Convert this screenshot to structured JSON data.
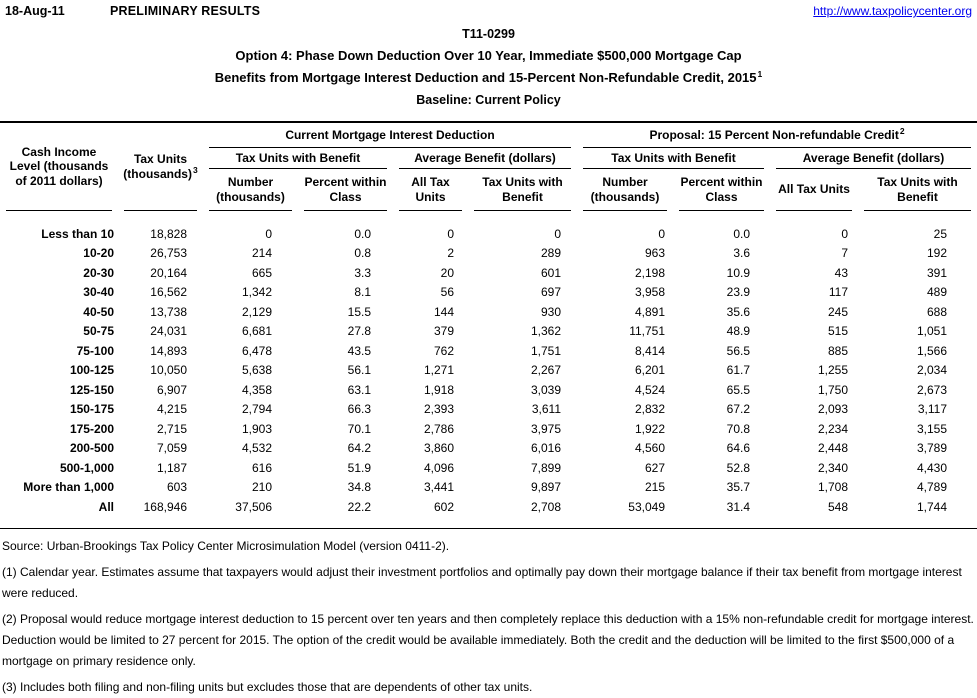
{
  "page": {
    "date": "18-Aug-11",
    "status": "PRELIMINARY RESULTS",
    "link": "http://www.taxpolicycenter.org",
    "table_number": "T11-0299",
    "title_option": "Option 4: Phase Down Deduction Over 10 Year, Immediate $500,000 Mortgage Cap",
    "title_benefits": "Benefits from Mortgage Interest Deduction and 15-Percent Non-Refundable Credit, 2015",
    "title_benefits_sup": "1",
    "title_baseline": "Baseline: Current Policy"
  },
  "table": {
    "header": {
      "income_lines": [
        "Cash Income",
        "Level (thousands",
        "of 2011 dollars)"
      ],
      "tax_units_line1": "Tax Units",
      "tax_units_line2": "(thousands)",
      "tax_units_sup": "3",
      "group1": "Current Mortgage Interest Deduction",
      "group2": "Proposal: 15 Percent Non-refundable Credit",
      "group2_sup": "2",
      "sub_units": "Tax Units with Benefit",
      "sub_avg": "Average Benefit (dollars)",
      "number_lines": [
        "Number",
        "(thousands)"
      ],
      "percent_lines": [
        "Percent within",
        "Class"
      ],
      "all_units": "All Tax Units",
      "benefit_lines": [
        "Tax Units with",
        "Benefit"
      ]
    },
    "rows": [
      {
        "label": "Less than 10",
        "values": [
          "18,828",
          "0",
          "0.0",
          "0",
          "0",
          "0",
          "0.0",
          "0",
          "25"
        ]
      },
      {
        "label": "10-20",
        "values": [
          "26,753",
          "214",
          "0.8",
          "2",
          "289",
          "963",
          "3.6",
          "7",
          "192"
        ]
      },
      {
        "label": "20-30",
        "values": [
          "20,164",
          "665",
          "3.3",
          "20",
          "601",
          "2,198",
          "10.9",
          "43",
          "391"
        ]
      },
      {
        "label": "30-40",
        "values": [
          "16,562",
          "1,342",
          "8.1",
          "56",
          "697",
          "3,958",
          "23.9",
          "117",
          "489"
        ]
      },
      {
        "label": "40-50",
        "values": [
          "13,738",
          "2,129",
          "15.5",
          "144",
          "930",
          "4,891",
          "35.6",
          "245",
          "688"
        ]
      },
      {
        "label": "50-75",
        "values": [
          "24,031",
          "6,681",
          "27.8",
          "379",
          "1,362",
          "11,751",
          "48.9",
          "515",
          "1,051"
        ]
      },
      {
        "label": "75-100",
        "values": [
          "14,893",
          "6,478",
          "43.5",
          "762",
          "1,751",
          "8,414",
          "56.5",
          "885",
          "1,566"
        ]
      },
      {
        "label": "100-125",
        "values": [
          "10,050",
          "5,638",
          "56.1",
          "1,271",
          "2,267",
          "6,201",
          "61.7",
          "1,255",
          "2,034"
        ]
      },
      {
        "label": "125-150",
        "values": [
          "6,907",
          "4,358",
          "63.1",
          "1,918",
          "3,039",
          "4,524",
          "65.5",
          "1,750",
          "2,673"
        ]
      },
      {
        "label": "150-175",
        "values": [
          "4,215",
          "2,794",
          "66.3",
          "2,393",
          "3,611",
          "2,832",
          "67.2",
          "2,093",
          "3,117"
        ]
      },
      {
        "label": "175-200",
        "values": [
          "2,715",
          "1,903",
          "70.1",
          "2,786",
          "3,975",
          "1,922",
          "70.8",
          "2,234",
          "3,155"
        ]
      },
      {
        "label": "200-500",
        "values": [
          "7,059",
          "4,532",
          "64.2",
          "3,860",
          "6,016",
          "4,560",
          "64.6",
          "2,448",
          "3,789"
        ]
      },
      {
        "label": "500-1,000",
        "values": [
          "1,187",
          "616",
          "51.9",
          "4,096",
          "7,899",
          "627",
          "52.8",
          "2,340",
          "4,430"
        ]
      },
      {
        "label": "More than 1,000",
        "values": [
          "603",
          "210",
          "34.8",
          "3,441",
          "9,897",
          "215",
          "35.7",
          "1,708",
          "4,789"
        ]
      },
      {
        "label": "All",
        "values": [
          "168,946",
          "37,506",
          "22.2",
          "602",
          "2,708",
          "53,049",
          "31.4",
          "548",
          "1,744"
        ]
      }
    ]
  },
  "notes": {
    "source": "Source: Urban-Brookings Tax Policy Center Microsimulation Model (version 0411-2).",
    "note1": "(1) Calendar year. Estimates assume that taxpayers would adjust their investment portfolios and optimally pay down their mortgage balance if their tax benefit from mortgage interest were reduced.",
    "note2": "(2) Proposal would reduce mortgage interest deduction to 15 percent over ten years and then completely replace this deduction with a 15% non-refundable credit for mortgage interest. Deduction would be limited to 27 percent for 2015. The option of the credit would be available immediately. Both the credit and the deduction will be limited to the first $500,000 of a mortgage on primary residence only.",
    "note3": "(3) Includes both filing and non-filing units but excludes those that are dependents of other tax units."
  }
}
